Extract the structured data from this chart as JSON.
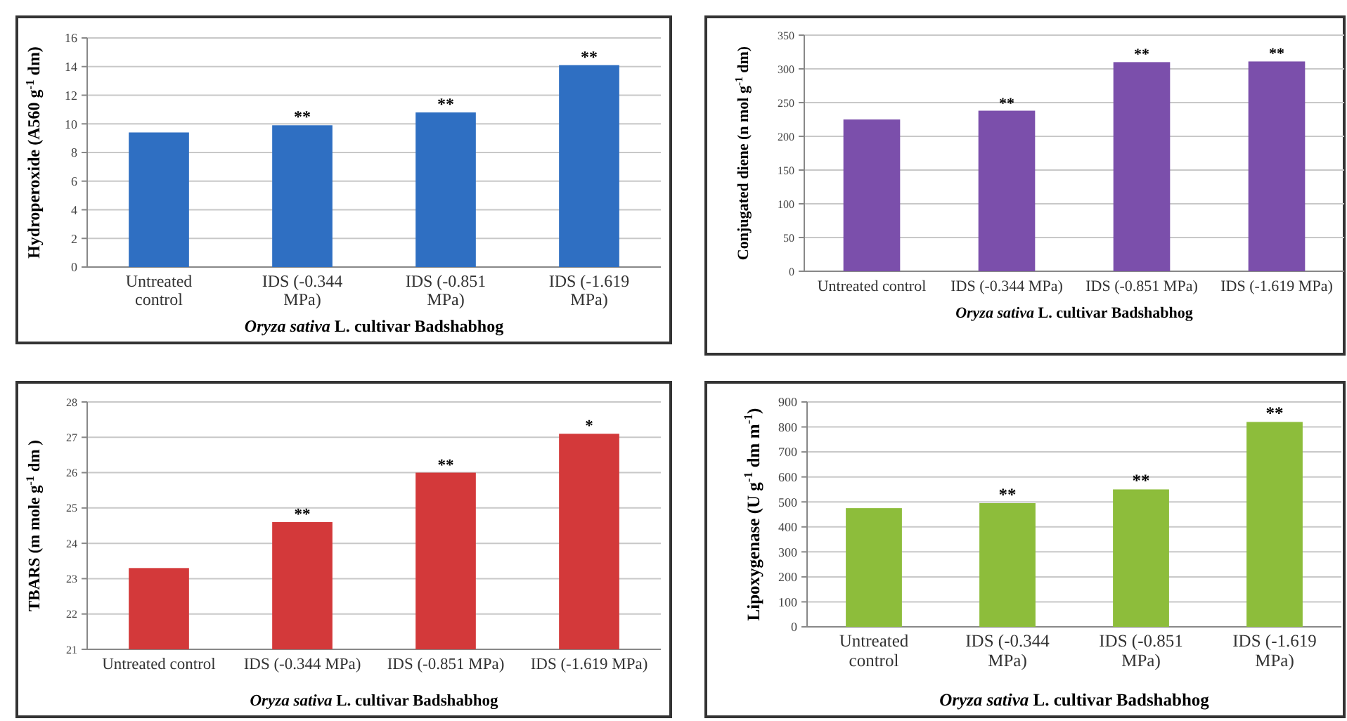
{
  "chart_data": [
    {
      "type": "bar",
      "ylabel": "Hydroperoxide (A560 g$^{-1}$ dm)",
      "xlabel": "Oryza sativa L. cultivar Badshabhog",
      "categories": [
        "Untreated control",
        "IDS (-0.344 MPa)",
        "IDS (-0.851 MPa)",
        "IDS (-1.619 MPa)"
      ],
      "values": [
        9.4,
        9.9,
        10.8,
        14.1
      ],
      "color": "#2f6fc2",
      "ylim": [
        0,
        16
      ],
      "yticks": [
        0,
        2,
        4,
        6,
        8,
        10,
        12,
        14,
        16
      ],
      "grid": "y",
      "annotations": [
        {
          "text": "**",
          "x": "IDS (-0.344 MPa)",
          "y": 9.9
        },
        {
          "text": "**",
          "x": "IDS (-0.851 MPa)",
          "y": 10.8
        },
        {
          "text": "**",
          "x": "IDS (-1.619 MPa)",
          "y": 14.1
        }
      ]
    },
    {
      "type": "bar",
      "ylabel": "Conjugated diene (n mol g$^{-1}$ dm)",
      "xlabel": "Oryza sativa L. cultivar Badshabhog",
      "categories": [
        "Untreated control",
        "IDS (-0.344 MPa)",
        "IDS (-0.851 MPa)",
        "IDS (-1.619 MPa)"
      ],
      "values": [
        225,
        238,
        310,
        311
      ],
      "color": "#7b4fab",
      "ylim": [
        0,
        350
      ],
      "yticks": [
        0,
        50,
        100,
        150,
        200,
        250,
        300,
        350
      ],
      "grid": "y",
      "annotations": [
        {
          "text": "**",
          "x": "IDS (-0.344 MPa)",
          "y": 238
        },
        {
          "text": "**",
          "x": "IDS (-0.851 MPa)",
          "y": 310
        },
        {
          "text": "**",
          "x": "IDS (-1.619 MPa)",
          "y": 311
        }
      ]
    },
    {
      "type": "bar",
      "ylabel": "TBARS (m mole g$^{-1}$ dm )",
      "xlabel": "Oryza sativa L. cultivar Badshabhog",
      "categories": [
        "Untreated control",
        "IDS (-0.344 MPa)",
        "IDS (-0.851 MPa)",
        "IDS (-1.619 MPa)"
      ],
      "values": [
        23.3,
        24.6,
        26.0,
        27.1
      ],
      "color": "#d3393a",
      "ylim": [
        21,
        28
      ],
      "yticks": [
        21,
        22,
        23,
        24,
        25,
        26,
        27,
        28
      ],
      "grid": "y",
      "annotations": [
        {
          "text": "**",
          "x": "IDS (-0.344 MPa)",
          "y": 24.6
        },
        {
          "text": "**",
          "x": "IDS (-0.851 MPa)",
          "y": 26.0
        },
        {
          "text": "*",
          "x": "IDS (-1.619 MPa)",
          "y": 27.1
        }
      ]
    },
    {
      "type": "bar",
      "ylabel": "Lipoxygenase (U g$^{-1}$ dm m$^{-1}$)",
      "xlabel": "Oryza sativa L. cultivar Badshabhog",
      "categories": [
        "Untreated control",
        "IDS (-0.344 MPa)",
        "IDS (-0.851 MPa)",
        "IDS (-1.619 MPa)"
      ],
      "values": [
        475,
        495,
        550,
        820
      ],
      "color": "#8dbd3b",
      "ylim": [
        0,
        900
      ],
      "yticks": [
        0,
        100,
        200,
        300,
        400,
        500,
        600,
        700,
        800,
        900
      ],
      "grid": "y",
      "annotations": [
        {
          "text": "**",
          "x": "IDS (-0.344 MPa)",
          "y": 495
        },
        {
          "text": "**",
          "x": "IDS (-0.851 MPa)",
          "y": 550
        },
        {
          "text": "**",
          "x": "IDS (-1.619 MPa)",
          "y": 820
        }
      ]
    }
  ]
}
